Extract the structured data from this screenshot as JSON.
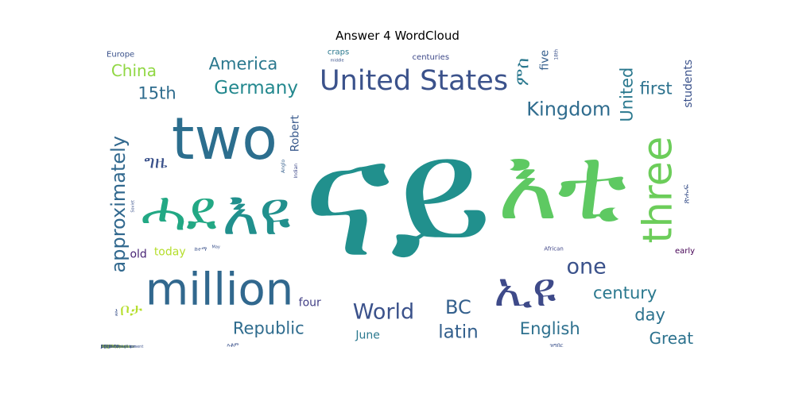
{
  "chart_data": {
    "type": "wordcloud",
    "title": "Answer 4 WordCloud",
    "words": [
      {
        "text": "ናይ",
        "weight": 100,
        "color": "#21908d"
      },
      {
        "text": "እዩ",
        "weight": 55,
        "color": "#21908d"
      },
      {
        "text": "two",
        "weight": 50,
        "color": "#2c6e8e"
      },
      {
        "text": "three",
        "weight": 34,
        "color": "#6ccd5a"
      },
      {
        "text": "million",
        "weight": 38,
        "color": "#31688e"
      },
      {
        "text": "United States",
        "weight": 22,
        "color": "#3b528b"
      },
      {
        "text": "ሓደ",
        "weight": 48,
        "color": "#22a884"
      },
      {
        "text": "እቲ",
        "weight": 60,
        "color": "#5ec962"
      },
      {
        "text": "ኢዩ",
        "weight": 40,
        "color": "#3e4a89"
      },
      {
        "text": "World",
        "weight": 16,
        "color": "#3b528b"
      },
      {
        "text": "Germany",
        "weight": 13,
        "color": "#23888e"
      },
      {
        "text": "Republic",
        "weight": 12,
        "color": "#2f6c8e"
      },
      {
        "text": "latin",
        "weight": 13,
        "color": "#34608d"
      },
      {
        "text": "one",
        "weight": 16,
        "color": "#3b528b"
      },
      {
        "text": "Robert",
        "weight": 11,
        "color": "#38598c"
      },
      {
        "text": "Kingdom",
        "weight": 14,
        "color": "#2f6c8e"
      },
      {
        "text": "approximately",
        "weight": 14,
        "color": "#31688e"
      },
      {
        "text": "century",
        "weight": 12,
        "color": "#2a788e"
      },
      {
        "text": "English",
        "weight": 12,
        "color": "#2d708e"
      },
      {
        "text": "America",
        "weight": 12,
        "color": "#2a788e"
      },
      {
        "text": "China",
        "weight": 11,
        "color": "#90d743"
      },
      {
        "text": "United",
        "weight": 12,
        "color": "#2a788e"
      },
      {
        "text": "15th",
        "weight": 12,
        "color": "#2f6c8e"
      },
      {
        "text": "BC",
        "weight": 14,
        "color": "#34608d"
      },
      {
        "text": "Great",
        "weight": 11,
        "color": "#2c728e"
      },
      {
        "text": "today",
        "weight": 11,
        "color": "#b5de2b"
      },
      {
        "text": "four",
        "weight": 11,
        "color": "#424086"
      },
      {
        "text": "five",
        "weight": 11,
        "color": "#355f8d"
      },
      {
        "text": "June",
        "weight": 11,
        "color": "#2a788e"
      },
      {
        "text": "first",
        "weight": 12,
        "color": "#2c728e"
      },
      {
        "text": "day",
        "weight": 12,
        "color": "#2c728e"
      },
      {
        "text": "centuries",
        "weight": 11,
        "color": "#3e4989"
      },
      {
        "text": "craps",
        "weight": 11,
        "color": "#2a788e"
      },
      {
        "text": "early",
        "weight": 11,
        "color": "#440154"
      },
      {
        "text": "students",
        "weight": 11,
        "color": "#3b528b"
      },
      {
        "text": "Europe",
        "weight": 11,
        "color": "#3b528b"
      },
      {
        "text": "Indian",
        "weight": 10,
        "color": "#3e4989"
      },
      {
        "text": "Japanese",
        "weight": 10,
        "color": "#2a788e"
      },
      {
        "text": "Greek",
        "weight": 10,
        "color": "#7ad151"
      },
      {
        "text": "old",
        "weight": 11,
        "color": "#482475"
      },
      {
        "text": "African",
        "weight": 11,
        "color": "#404688"
      },
      {
        "text": "square",
        "weight": 10,
        "color": "#3b528b"
      },
      {
        "text": "20th century",
        "weight": 10,
        "color": "#7ad151"
      },
      {
        "text": "Magnoliophyta",
        "weight": 9,
        "color": "#2a788e"
      },
      {
        "text": "Joseph",
        "weight": 9,
        "color": "#3e4989"
      },
      {
        "text": "Anglo",
        "weight": 10,
        "color": "#355f8d"
      },
      {
        "text": "British",
        "weight": 10,
        "color": "#3b528b"
      },
      {
        "text": "Thomas",
        "weight": 9,
        "color": "#3b528b"
      },
      {
        "text": "Italy",
        "weight": 10,
        "color": "#3b528b"
      },
      {
        "text": "November",
        "weight": 9,
        "color": "#2a788e"
      },
      {
        "text": "John",
        "weight": 10,
        "color": "#3e4989"
      },
      {
        "text": "Series",
        "weight": 9,
        "color": "#3b528b"
      },
      {
        "text": "Gulf",
        "weight": 10,
        "color": "#b5de2b"
      },
      {
        "text": "France",
        "weight": 9,
        "color": "#2a788e"
      },
      {
        "text": "years",
        "weight": 9,
        "color": "#3b528b"
      },
      {
        "text": "18th",
        "weight": 10,
        "color": "#3b528b"
      },
      {
        "text": "Gastric",
        "weight": 9,
        "color": "#2a788e"
      },
      {
        "text": "Earth",
        "weight": 9,
        "color": "#3e4989"
      },
      {
        "text": "American",
        "weight": 8,
        "color": "#3b528b"
      },
      {
        "text": "West",
        "weight": 9,
        "color": "#3b528b"
      },
      {
        "text": "Italian",
        "weight": 8,
        "color": "#3e4989"
      },
      {
        "text": "RGB",
        "weight": 9,
        "color": "#b5de2b"
      },
      {
        "text": "age",
        "weight": 9,
        "color": "#3b528b"
      },
      {
        "text": "Bulsara",
        "weight": 9,
        "color": "#3b528b"
      },
      {
        "text": "Roger",
        "weight": 9,
        "color": "#b5de2b"
      },
      {
        "text": "month",
        "weight": 9,
        "color": "#2a788e"
      },
      {
        "text": "Party",
        "weight": 8,
        "color": "#3e4989"
      },
      {
        "text": "third",
        "weight": 8,
        "color": "#3b528b"
      },
      {
        "text": "several",
        "weight": 8,
        "color": "#3e4989"
      },
      {
        "text": "percent",
        "weight": 8,
        "color": "#3e4989"
      },
      {
        "text": "Alexander",
        "weight": 8,
        "color": "#2a788e"
      },
      {
        "text": "FAA",
        "weight": 9,
        "color": "#3b528b"
      },
      {
        "text": "thousands",
        "weight": 8,
        "color": "#b5de2b"
      },
      {
        "text": "middle",
        "weight": 7,
        "color": "#3b528b"
      },
      {
        "text": "decades",
        "weight": 8,
        "color": "#3b528b"
      },
      {
        "text": "almost",
        "weight": 9,
        "color": "#3b528b"
      },
      {
        "text": "least",
        "weight": 8,
        "color": "#3b528b"
      },
      {
        "text": "around",
        "weight": 8,
        "color": "#2a788e"
      },
      {
        "text": "Saint",
        "weight": 8,
        "color": "#b5de2b"
      },
      {
        "text": "May",
        "weight": 7,
        "color": "#3b528b"
      },
      {
        "text": "October",
        "weight": 7,
        "color": "#3e4989"
      },
      {
        "text": "WarPac",
        "weight": 8,
        "color": "#3b528b"
      },
      {
        "text": "Soviet",
        "weight": 7,
        "color": "#3b528b"
      },
      {
        "text": "Photo",
        "weight": 7,
        "color": "#b5de2b"
      },
      {
        "text": "South",
        "weight": 6,
        "color": "#3b528b"
      },
      {
        "text": "System",
        "weight": 5,
        "color": "#3b528b"
      },
      {
        "text": "midafternoon",
        "weight": 6,
        "color": "#3b528b"
      },
      {
        "text": "Wide Web",
        "weight": 4,
        "color": "#3b528b"
      },
      {
        "text": "East Polynesians",
        "weight": 4,
        "color": "#b5de2b"
      },
      {
        "text": "16th",
        "weight": 5,
        "color": "#3b528b"
      },
      {
        "text": "Census Bureau",
        "weight": 4,
        "color": "#3b528b"
      },
      {
        "text": "Human Development",
        "weight": 4,
        "color": "#3b528b"
      },
      {
        "text": "Gates Foundation",
        "weight": 4,
        "color": "#3b528b"
      },
      {
        "text": "Melinda Gates",
        "weight": 4,
        "color": "#b5de2b"
      },
      {
        "text": "William",
        "weight": 5,
        "color": "#3b528b"
      },
      {
        "text": "Development",
        "weight": 4,
        "color": "#3b528b"
      },
      {
        "text": "ከተማ",
        "weight": 11,
        "color": "#3b528b"
      },
      {
        "text": "ቦታ",
        "weight": 12,
        "color": "#b5de2b"
      },
      {
        "text": "ግዜ",
        "weight": 13,
        "color": "#3b528b"
      },
      {
        "text": "ዓመታት",
        "weight": 10,
        "color": "#3b528b"
      },
      {
        "text": "ምስ",
        "weight": 13,
        "color": "#2a788e"
      },
      {
        "text": "ሰባት",
        "weight": 10,
        "color": "#3b528b"
      },
      {
        "text": "ጽሑፍ",
        "weight": 11,
        "color": "#3b528b"
      },
      {
        "text": "እንግሊዝ",
        "weight": 10,
        "color": "#3b528b"
      },
      {
        "text": "ክፍለት",
        "weight": 10,
        "color": "#3b528b"
      },
      {
        "text": "ዘሎ",
        "weight": 10,
        "color": "#3b528b"
      },
      {
        "text": "ዝግበር",
        "weight": 11,
        "color": "#3b528b"
      },
      {
        "text": "እቶም",
        "weight": 11,
        "color": "#3b528b"
      },
      {
        "text": "ቀዳማይ",
        "weight": 11,
        "color": "#3b528b"
      },
      {
        "text": "ብሪጣንያ",
        "weight": 10,
        "color": "#b5de2b"
      },
      {
        "text": "ምምስራት",
        "weight": 9,
        "color": "#3b528b"
      },
      {
        "text": "ጸሓፊ",
        "weight": 9,
        "color": "#b5de2b"
      },
      {
        "text": "ጦርነት",
        "weight": 9,
        "color": "#3b528b"
      },
      {
        "text": "ዓዲ",
        "weight": 9,
        "color": "#3b528b"
      },
      {
        "text": "ሓይሊ",
        "weight": 9,
        "color": "#2a788e"
      },
      {
        "text": "ከምኡውን",
        "weight": 11,
        "color": "#3b528b"
      }
    ]
  }
}
